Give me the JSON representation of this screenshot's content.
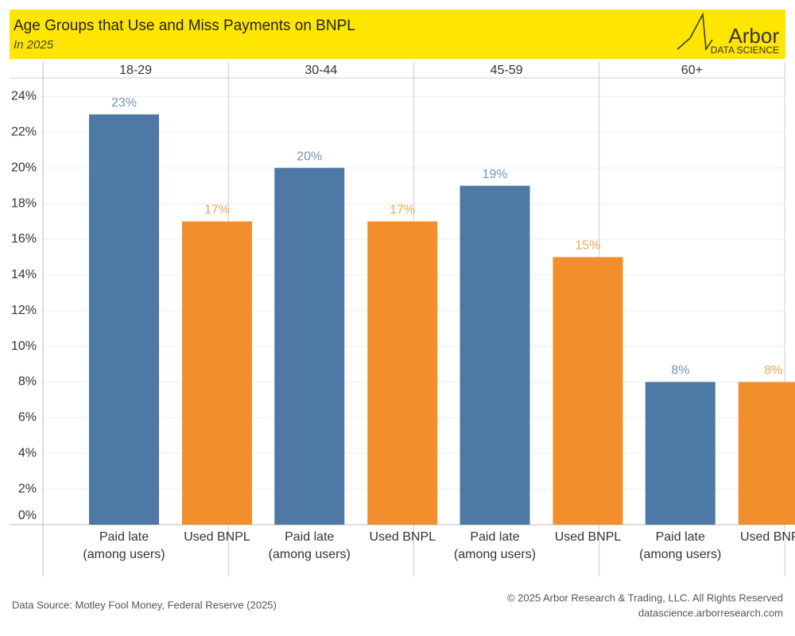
{
  "chart_data": {
    "type": "bar",
    "title": "Age Groups that Use and Miss Payments on BNPL",
    "subtitle": "In 2025",
    "logo": {
      "name": "Arbor",
      "tagline": "DATA SCIENCE"
    },
    "categories": [
      "18-29",
      "30-44",
      "45-59",
      "60+"
    ],
    "series": [
      {
        "name": "Paid late (among users)",
        "color": "#4e79a7",
        "values": [
          23,
          20,
          19,
          8
        ],
        "value_labels": [
          "23%",
          "20%",
          "19%",
          "8%"
        ]
      },
      {
        "name": "Used BNPL",
        "color": "#f28e2b",
        "values": [
          17,
          17,
          15,
          8
        ],
        "value_labels": [
          "17%",
          "17%",
          "15%",
          "8%"
        ]
      }
    ],
    "ylim": [
      0,
      25
    ],
    "yticks": [
      {
        "value": 0,
        "label": "0%"
      },
      {
        "value": 2,
        "label": "2%"
      },
      {
        "value": 4,
        "label": "4%"
      },
      {
        "value": 6,
        "label": "6%"
      },
      {
        "value": 8,
        "label": "8%"
      },
      {
        "value": 10,
        "label": "10%"
      },
      {
        "value": 12,
        "label": "12%"
      },
      {
        "value": 14,
        "label": "14%"
      },
      {
        "value": 16,
        "label": "16%"
      },
      {
        "value": 18,
        "label": "18%"
      },
      {
        "value": 20,
        "label": "20%"
      },
      {
        "value": 22,
        "label": "22%"
      },
      {
        "value": 24,
        "label": "24%"
      }
    ],
    "grid": true,
    "source": "Data Source: Motley Fool Money, Federal Reserve (2025)",
    "copyright": "© 2025 Arbor Research & Trading, LLC. All Rights Reserved",
    "website": "datascience.arborresearch.com"
  }
}
